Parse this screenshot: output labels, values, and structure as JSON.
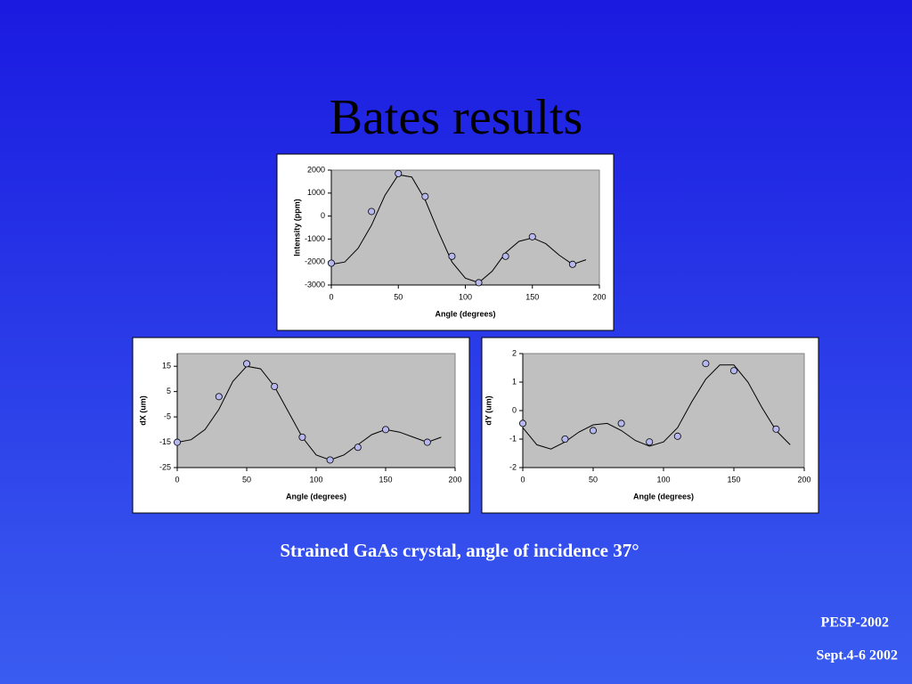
{
  "title": "Bates results",
  "chart_data": [
    {
      "type": "scatter",
      "xlabel": "Angle (degrees)",
      "ylabel": "Intensity (ppm)",
      "x": [
        0,
        30,
        50,
        70,
        90,
        110,
        130,
        150,
        180
      ],
      "values": [
        -2050,
        200,
        1850,
        850,
        -1750,
        -2900,
        -1750,
        -900,
        -2100
      ],
      "fit": {
        "x": [
          0,
          10,
          20,
          30,
          40,
          50,
          60,
          70,
          80,
          90,
          100,
          110,
          120,
          130,
          140,
          150,
          160,
          170,
          180,
          190
        ],
        "values": [
          -2100,
          -2000,
          -1400,
          -400,
          900,
          1800,
          1700,
          700,
          -700,
          -2000,
          -2700,
          -2900,
          -2400,
          -1600,
          -1100,
          -950,
          -1200,
          -1700,
          -2100,
          -1900
        ]
      },
      "xlim": [
        0,
        200
      ],
      "xticks": [
        0,
        50,
        100,
        150,
        200
      ],
      "ylim": [
        -3000,
        2000
      ],
      "yticks": [
        -3000,
        -2000,
        -1000,
        0,
        1000,
        2000
      ]
    },
    {
      "type": "scatter",
      "xlabel": "Angle (degrees)",
      "ylabel": "dX (um)",
      "x": [
        0,
        30,
        50,
        70,
        90,
        110,
        130,
        150,
        180
      ],
      "values": [
        -15,
        3,
        16,
        7,
        -13,
        -22,
        -17,
        -10,
        -15
      ],
      "fit": {
        "x": [
          0,
          10,
          20,
          30,
          40,
          50,
          60,
          70,
          80,
          90,
          100,
          110,
          120,
          130,
          140,
          150,
          160,
          170,
          180,
          190
        ],
        "values": [
          -15,
          -14,
          -10,
          -2,
          9,
          15,
          14,
          7,
          -3,
          -13,
          -20,
          -22,
          -20,
          -16,
          -12,
          -10,
          -11,
          -13,
          -15,
          -13
        ]
      },
      "xlim": [
        0,
        200
      ],
      "xticks": [
        0,
        50,
        100,
        150,
        200
      ],
      "ylim": [
        -25,
        20
      ],
      "yticks": [
        -25,
        -15,
        -5,
        5,
        15
      ]
    },
    {
      "type": "scatter",
      "xlabel": "Angle (degrees)",
      "ylabel": "dY (um)",
      "x": [
        0,
        30,
        50,
        70,
        90,
        110,
        130,
        150,
        180
      ],
      "values": [
        -0.45,
        -1,
        -0.7,
        -0.45,
        -1.1,
        -0.9,
        1.65,
        1.4,
        -0.65
      ],
      "fit": {
        "x": [
          0,
          10,
          20,
          30,
          40,
          50,
          60,
          70,
          80,
          90,
          100,
          110,
          120,
          130,
          140,
          150,
          160,
          170,
          180,
          190
        ],
        "values": [
          -0.6,
          -1.2,
          -1.35,
          -1.1,
          -0.75,
          -0.5,
          -0.45,
          -0.7,
          -1.05,
          -1.25,
          -1.1,
          -0.6,
          0.3,
          1.1,
          1.6,
          1.6,
          1.0,
          0.1,
          -0.7,
          -1.2
        ]
      },
      "xlim": [
        0,
        200
      ],
      "xticks": [
        0,
        50,
        100,
        150,
        200
      ],
      "ylim": [
        -2,
        2
      ],
      "yticks": [
        -2,
        -1,
        0,
        1,
        2
      ]
    }
  ],
  "caption": "Strained GaAs crystal, angle of incidence 37°",
  "footer": [
    "PESP-2002",
    "Sept.4-6 2002"
  ]
}
